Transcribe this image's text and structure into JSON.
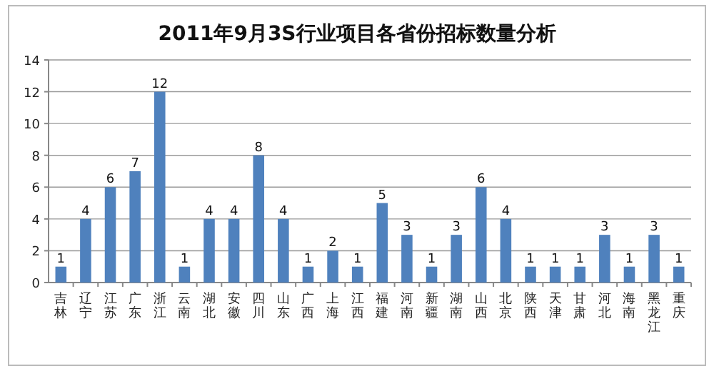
{
  "chart_data": {
    "type": "bar",
    "title": "2011年9月3S行业项目各省份招标数量分析",
    "categories": [
      "吉林",
      "辽宁",
      "江苏",
      "广东",
      "浙江",
      "云南",
      "湖北",
      "安徽",
      "四川",
      "山东",
      "广西",
      "上海",
      "江西",
      "福建",
      "河南",
      "新疆",
      "湖南",
      "山西",
      "北京",
      "陕西",
      "天津",
      "甘肃",
      "河北",
      "海南",
      "黑龙江",
      "重庆"
    ],
    "values": [
      1,
      4,
      6,
      7,
      12,
      1,
      4,
      4,
      8,
      4,
      1,
      2,
      1,
      5,
      3,
      1,
      3,
      6,
      4,
      1,
      1,
      1,
      3,
      1,
      3,
      1
    ],
    "color": "#4f81bd",
    "ylim": [
      0,
      14
    ],
    "yticks": [
      0,
      2,
      4,
      6,
      8,
      10,
      12,
      14
    ],
    "grid": "y",
    "data_labels": true
  }
}
